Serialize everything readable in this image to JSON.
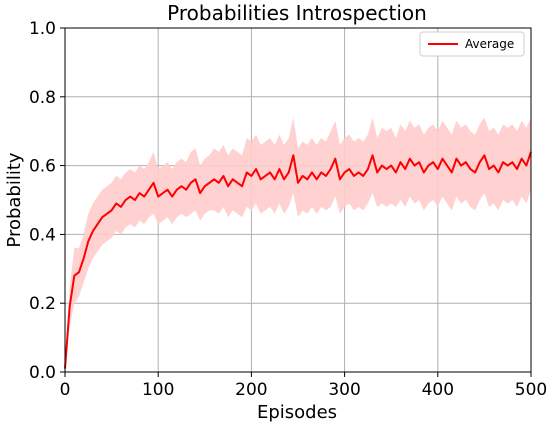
{
  "chart_data": {
    "type": "line",
    "title": "Probabilities Introspection",
    "xlabel": "Episodes",
    "ylabel": "Probability",
    "xlim": [
      0,
      500
    ],
    "ylim": [
      0.0,
      1.0
    ],
    "xticks": [
      0,
      100,
      200,
      300,
      400,
      500
    ],
    "xtick_labels": [
      "0",
      "100",
      "200",
      "300",
      "400",
      "500"
    ],
    "yticks": [
      0.0,
      0.2,
      0.4,
      0.6,
      0.8,
      1.0
    ],
    "ytick_labels": [
      "0.0",
      "0.2",
      "0.4",
      "0.6",
      "0.8",
      "1.0"
    ],
    "grid": true,
    "legend_position": "top-right",
    "colors": {
      "line": "#ff0000",
      "band": "#ffcccc"
    },
    "series": [
      {
        "name": "Average",
        "x": [
          0,
          5,
          10,
          15,
          20,
          25,
          30,
          35,
          40,
          45,
          50,
          55,
          60,
          65,
          70,
          75,
          80,
          85,
          90,
          95,
          100,
          105,
          110,
          115,
          120,
          125,
          130,
          135,
          140,
          145,
          150,
          155,
          160,
          165,
          170,
          175,
          180,
          185,
          190,
          195,
          200,
          205,
          210,
          215,
          220,
          225,
          230,
          235,
          240,
          245,
          250,
          255,
          260,
          265,
          270,
          275,
          280,
          285,
          290,
          295,
          300,
          305,
          310,
          315,
          320,
          325,
          330,
          335,
          340,
          345,
          350,
          355,
          360,
          365,
          370,
          375,
          380,
          385,
          390,
          395,
          400,
          405,
          410,
          415,
          420,
          425,
          430,
          435,
          440,
          445,
          450,
          455,
          460,
          465,
          470,
          475,
          480,
          485,
          490,
          495,
          500
        ],
        "y": [
          0.01,
          0.19,
          0.28,
          0.29,
          0.33,
          0.38,
          0.41,
          0.43,
          0.45,
          0.46,
          0.47,
          0.49,
          0.48,
          0.5,
          0.51,
          0.5,
          0.52,
          0.51,
          0.53,
          0.55,
          0.51,
          0.52,
          0.53,
          0.51,
          0.53,
          0.54,
          0.53,
          0.55,
          0.56,
          0.52,
          0.54,
          0.55,
          0.56,
          0.55,
          0.57,
          0.54,
          0.56,
          0.55,
          0.54,
          0.58,
          0.57,
          0.59,
          0.56,
          0.57,
          0.58,
          0.56,
          0.59,
          0.56,
          0.58,
          0.63,
          0.55,
          0.57,
          0.56,
          0.58,
          0.56,
          0.58,
          0.57,
          0.59,
          0.62,
          0.56,
          0.58,
          0.59,
          0.57,
          0.58,
          0.57,
          0.59,
          0.63,
          0.58,
          0.6,
          0.59,
          0.6,
          0.58,
          0.61,
          0.59,
          0.62,
          0.6,
          0.61,
          0.58,
          0.6,
          0.61,
          0.59,
          0.62,
          0.6,
          0.58,
          0.62,
          0.6,
          0.61,
          0.59,
          0.58,
          0.61,
          0.63,
          0.59,
          0.6,
          0.58,
          0.61,
          0.6,
          0.61,
          0.59,
          0.62,
          0.6,
          0.64
        ],
        "lower": [
          0.01,
          0.13,
          0.2,
          0.22,
          0.26,
          0.3,
          0.33,
          0.35,
          0.37,
          0.38,
          0.39,
          0.41,
          0.4,
          0.42,
          0.43,
          0.42,
          0.44,
          0.43,
          0.45,
          0.46,
          0.43,
          0.44,
          0.45,
          0.43,
          0.45,
          0.46,
          0.45,
          0.46,
          0.47,
          0.44,
          0.46,
          0.47,
          0.47,
          0.46,
          0.48,
          0.45,
          0.47,
          0.46,
          0.45,
          0.48,
          0.47,
          0.49,
          0.46,
          0.47,
          0.48,
          0.46,
          0.49,
          0.46,
          0.48,
          0.52,
          0.45,
          0.47,
          0.46,
          0.48,
          0.46,
          0.48,
          0.47,
          0.48,
          0.51,
          0.46,
          0.48,
          0.49,
          0.47,
          0.48,
          0.47,
          0.49,
          0.52,
          0.48,
          0.49,
          0.48,
          0.49,
          0.48,
          0.5,
          0.48,
          0.51,
          0.49,
          0.5,
          0.47,
          0.49,
          0.5,
          0.48,
          0.51,
          0.49,
          0.47,
          0.51,
          0.49,
          0.5,
          0.48,
          0.47,
          0.5,
          0.52,
          0.48,
          0.49,
          0.47,
          0.5,
          0.49,
          0.5,
          0.48,
          0.51,
          0.49,
          0.53
        ],
        "upper": [
          0.01,
          0.25,
          0.36,
          0.36,
          0.4,
          0.46,
          0.49,
          0.51,
          0.53,
          0.54,
          0.55,
          0.57,
          0.56,
          0.58,
          0.59,
          0.58,
          0.6,
          0.59,
          0.61,
          0.64,
          0.59,
          0.6,
          0.61,
          0.59,
          0.61,
          0.62,
          0.61,
          0.64,
          0.65,
          0.6,
          0.62,
          0.63,
          0.65,
          0.64,
          0.66,
          0.63,
          0.65,
          0.64,
          0.63,
          0.68,
          0.67,
          0.69,
          0.66,
          0.67,
          0.68,
          0.66,
          0.69,
          0.66,
          0.68,
          0.74,
          0.65,
          0.67,
          0.66,
          0.68,
          0.66,
          0.68,
          0.67,
          0.7,
          0.73,
          0.66,
          0.68,
          0.69,
          0.67,
          0.68,
          0.67,
          0.69,
          0.74,
          0.68,
          0.71,
          0.7,
          0.71,
          0.68,
          0.72,
          0.7,
          0.73,
          0.71,
          0.72,
          0.69,
          0.71,
          0.72,
          0.7,
          0.73,
          0.71,
          0.69,
          0.73,
          0.71,
          0.72,
          0.7,
          0.69,
          0.72,
          0.74,
          0.7,
          0.71,
          0.69,
          0.72,
          0.71,
          0.72,
          0.7,
          0.73,
          0.71,
          0.74
        ]
      }
    ]
  }
}
